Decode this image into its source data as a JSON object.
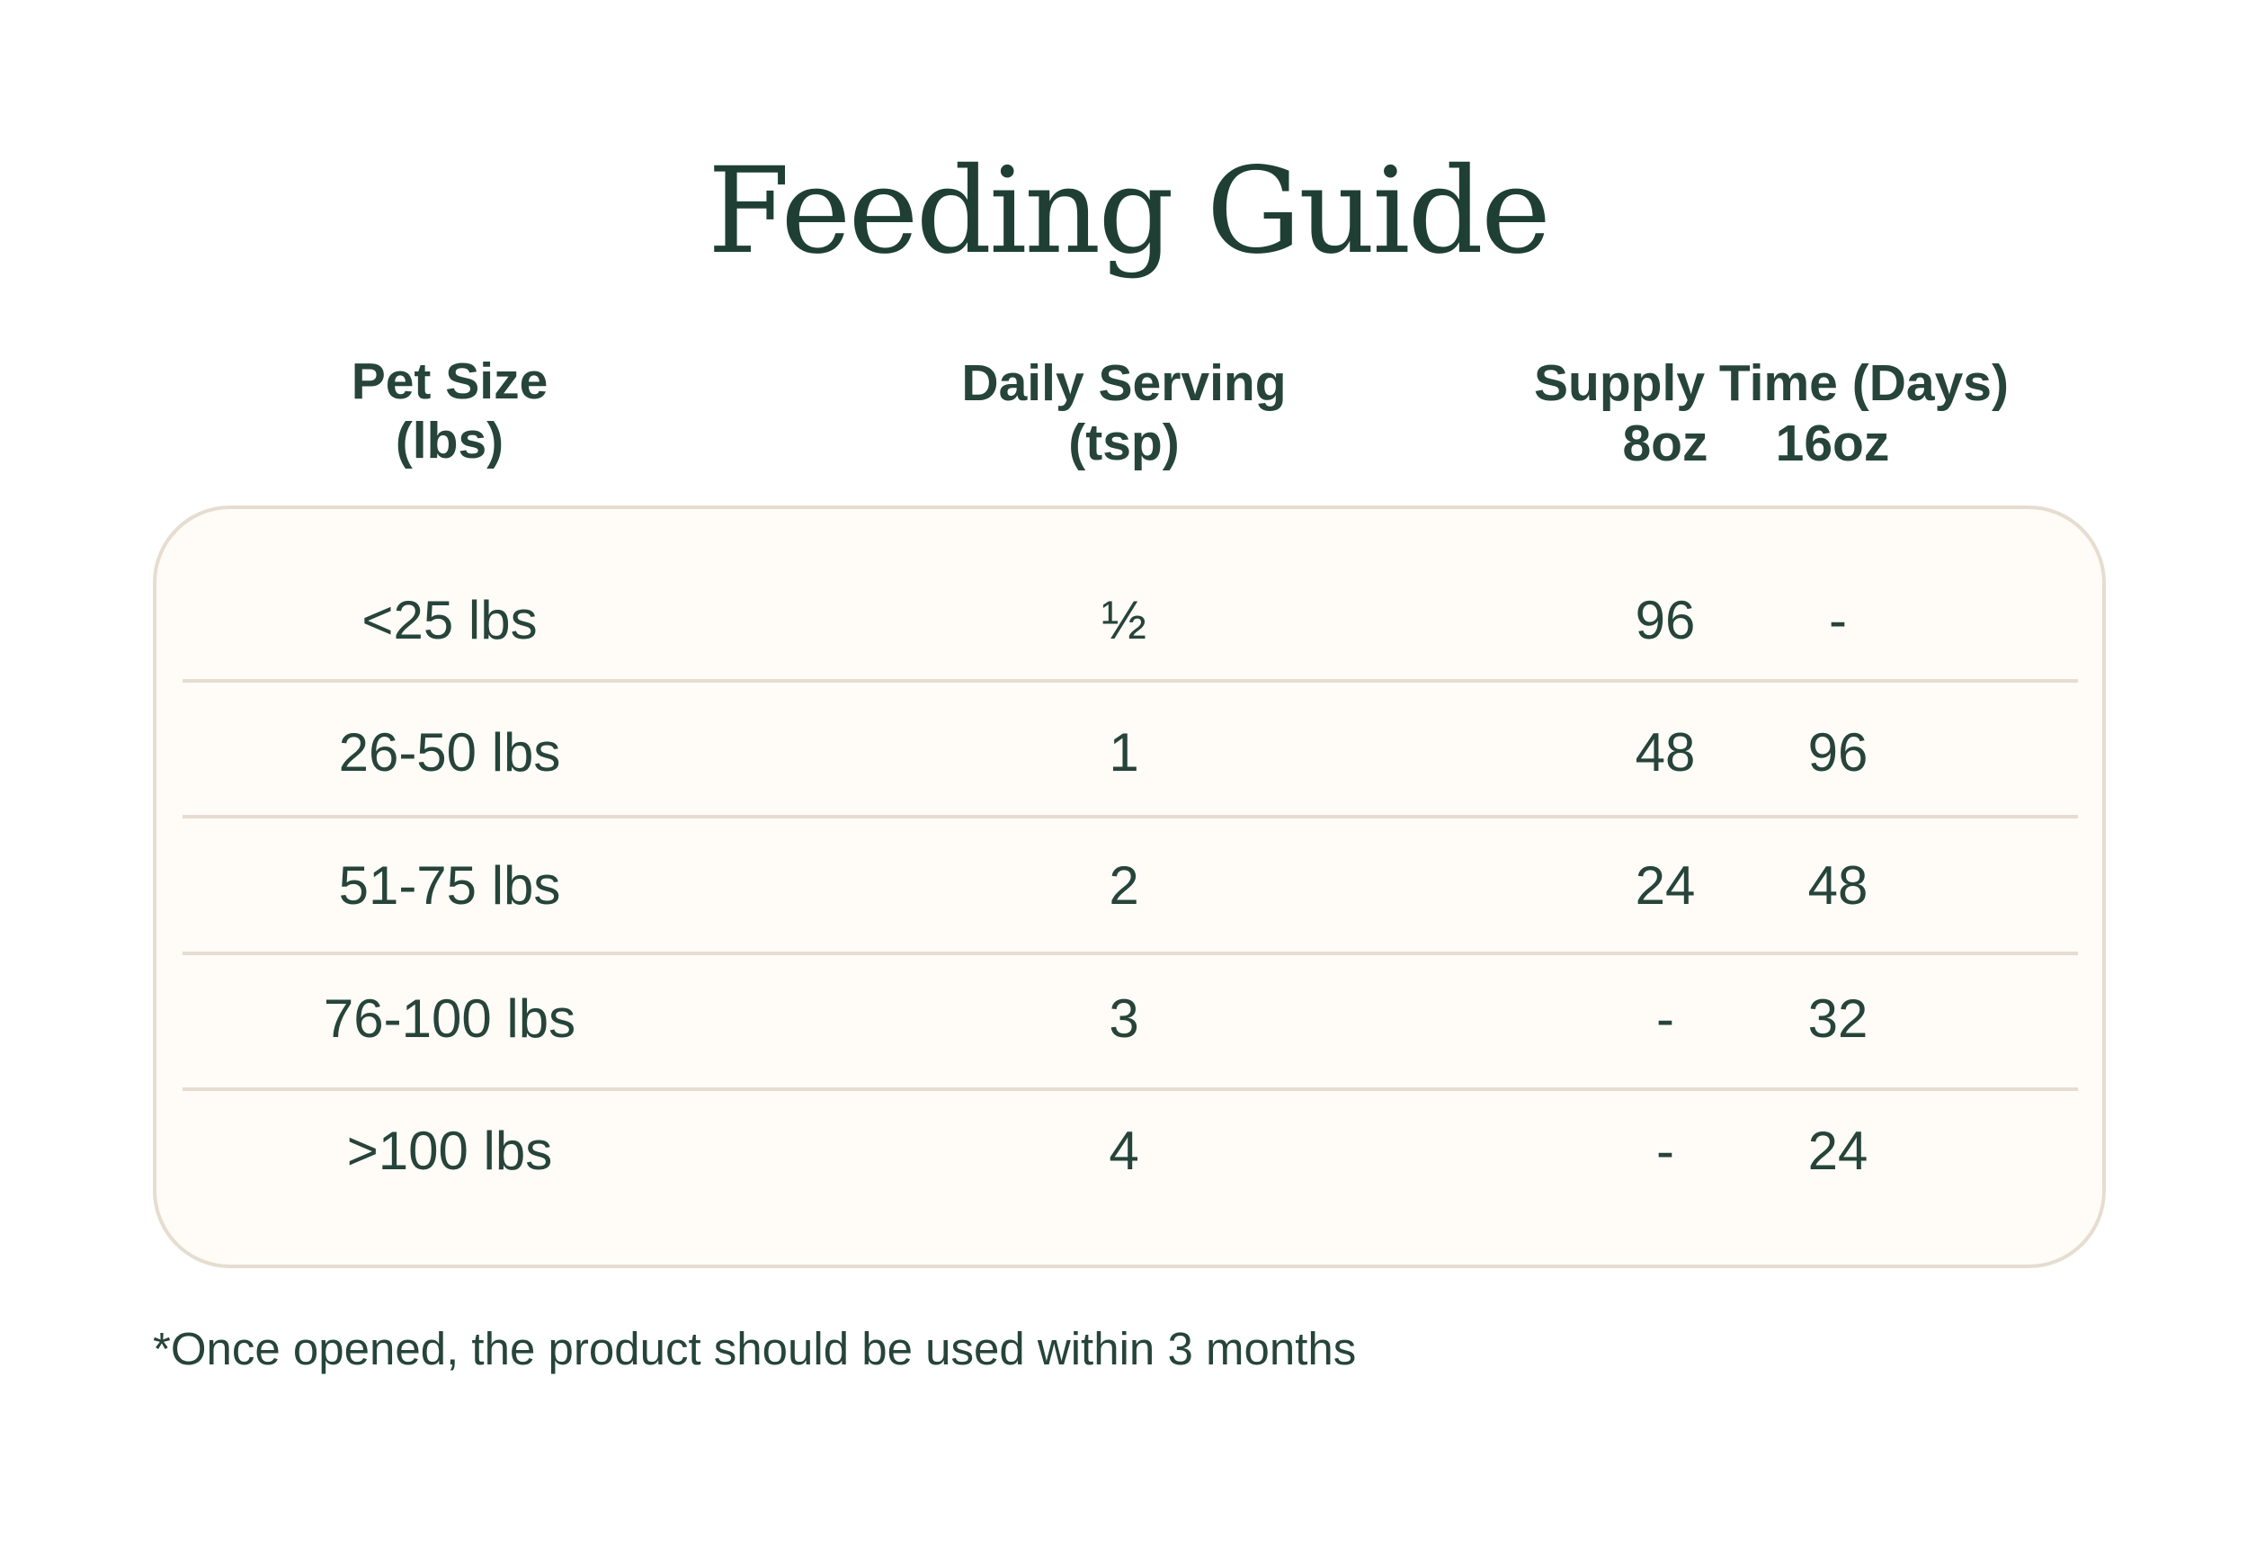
{
  "title": "Feeding Guide",
  "headers": {
    "pet_size": [
      "Pet Size",
      "(lbs)"
    ],
    "daily_serving": [
      "Daily Serving",
      "(tsp)"
    ],
    "supply_time": "Supply Time (Days)",
    "supply_sizes": [
      "8oz",
      "16oz"
    ]
  },
  "rows": [
    {
      "size": "<25 lbs",
      "serving": "½",
      "oz8": "96",
      "oz16": "-"
    },
    {
      "size": "26-50 lbs",
      "serving": "1",
      "oz8": "48",
      "oz16": "96"
    },
    {
      "size": "51-75 lbs",
      "serving": "2",
      "oz8": "24",
      "oz16": "48"
    },
    {
      "size": "76-100 lbs",
      "serving": "3",
      "oz8": "-",
      "oz16": "32"
    },
    {
      "size": ">100 lbs",
      "serving": "4",
      "oz8": "-",
      "oz16": "24"
    }
  ],
  "footnote": "*Once opened, the product should be used within 3 months",
  "colors": {
    "text": "#26443a",
    "card_background": "#fffbf7",
    "card_border": "#e6ddd0"
  }
}
